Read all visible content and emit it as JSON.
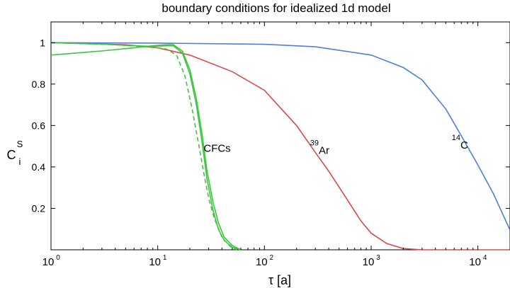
{
  "chart_data": {
    "type": "line",
    "title": "boundary conditions for idealized 1d model",
    "xlabel": "τ [a]",
    "ylabel": {
      "base": "C",
      "sup": "S",
      "sub": "i"
    },
    "x_scale": "log",
    "xlim": [
      1,
      20000
    ],
    "ylim": [
      0,
      1.1
    ],
    "grid": false,
    "x_ticks": [
      {
        "value": 1,
        "base": "10",
        "exp": "0"
      },
      {
        "value": 10,
        "base": "10",
        "exp": "1"
      },
      {
        "value": 100,
        "base": "10",
        "exp": "2"
      },
      {
        "value": 1000,
        "base": "10",
        "exp": "3"
      },
      {
        "value": 10000,
        "base": "10",
        "exp": "4"
      }
    ],
    "y_ticks": [
      {
        "value": 0.2,
        "label": "0.2"
      },
      {
        "value": 0.4,
        "label": "0.4"
      },
      {
        "value": 0.6,
        "label": "0.6"
      },
      {
        "value": 0.8,
        "label": "0.8"
      },
      {
        "value": 1.0,
        "label": "1"
      }
    ],
    "series": [
      {
        "key": "c14",
        "color": "#4f7fd6",
        "dash": "",
        "points": [
          [
            1,
            1.0
          ],
          [
            10,
            0.998
          ],
          [
            100,
            0.992
          ],
          [
            300,
            0.98
          ],
          [
            1000,
            0.94
          ],
          [
            2000,
            0.88
          ],
          [
            3000,
            0.82
          ],
          [
            5000,
            0.68
          ],
          [
            7000,
            0.55
          ],
          [
            10000,
            0.41
          ],
          [
            14000,
            0.27
          ],
          [
            20000,
            0.095
          ]
        ]
      },
      {
        "key": "ar39",
        "color": "#d94a4a",
        "dash": "",
        "points": [
          [
            1,
            1.0
          ],
          [
            5,
            0.99
          ],
          [
            10,
            0.975
          ],
          [
            20,
            0.94
          ],
          [
            50,
            0.86
          ],
          [
            100,
            0.77
          ],
          [
            200,
            0.6
          ],
          [
            300,
            0.47
          ],
          [
            400,
            0.38
          ],
          [
            600,
            0.24
          ],
          [
            800,
            0.14
          ],
          [
            1000,
            0.08
          ],
          [
            1400,
            0.03
          ],
          [
            2000,
            0.006
          ],
          [
            3000,
            0.0
          ],
          [
            20000,
            0.0
          ]
        ]
      },
      {
        "key": "cfc_a",
        "color": "#3fc43f",
        "dash": "",
        "points": [
          [
            1,
            0.94
          ],
          [
            3,
            0.96
          ],
          [
            6,
            0.975
          ],
          [
            9,
            0.985
          ],
          [
            12,
            0.99
          ],
          [
            14,
            0.99
          ],
          [
            17,
            0.96
          ],
          [
            20,
            0.87
          ],
          [
            23,
            0.73
          ],
          [
            26,
            0.56
          ],
          [
            29,
            0.38
          ],
          [
            33,
            0.23
          ],
          [
            37,
            0.13
          ],
          [
            42,
            0.06
          ],
          [
            50,
            0.02
          ],
          [
            60,
            0.0
          ]
        ]
      },
      {
        "key": "cfc_b",
        "color": "#3fc43f",
        "dash": "",
        "points": [
          [
            1,
            1.0
          ],
          [
            3,
            0.993
          ],
          [
            6,
            0.985
          ],
          [
            9,
            0.982
          ],
          [
            12,
            0.985
          ],
          [
            14,
            0.985
          ],
          [
            17,
            0.95
          ],
          [
            20,
            0.85
          ],
          [
            23,
            0.7
          ],
          [
            26,
            0.52
          ],
          [
            29,
            0.34
          ],
          [
            33,
            0.19
          ],
          [
            37,
            0.1
          ],
          [
            42,
            0.045
          ],
          [
            50,
            0.012
          ],
          [
            60,
            0.0
          ]
        ]
      },
      {
        "key": "cfc_dash",
        "color": "#3fc43f",
        "dash": "6,4",
        "points": [
          [
            1,
            1.0
          ],
          [
            4,
            0.99
          ],
          [
            8,
            0.98
          ],
          [
            12,
            0.97
          ],
          [
            15,
            0.94
          ],
          [
            18,
            0.84
          ],
          [
            21,
            0.68
          ],
          [
            24,
            0.52
          ],
          [
            27,
            0.37
          ],
          [
            30,
            0.25
          ],
          [
            34,
            0.15
          ],
          [
            40,
            0.06
          ],
          [
            48,
            0.015
          ],
          [
            55,
            0.0
          ]
        ]
      }
    ],
    "annotations": [
      {
        "key": "c14",
        "base": "C",
        "sup": "14",
        "x": 8500,
        "y": 0.505,
        "color": "#000000"
      },
      {
        "key": "ar39",
        "base": "Ar",
        "sup": "39",
        "x": 400,
        "y": 0.48,
        "color": "#000000"
      },
      {
        "key": "cfc",
        "base": "CFCs",
        "sup": "",
        "x": 40,
        "y": 0.49,
        "color": "#000000"
      }
    ]
  }
}
